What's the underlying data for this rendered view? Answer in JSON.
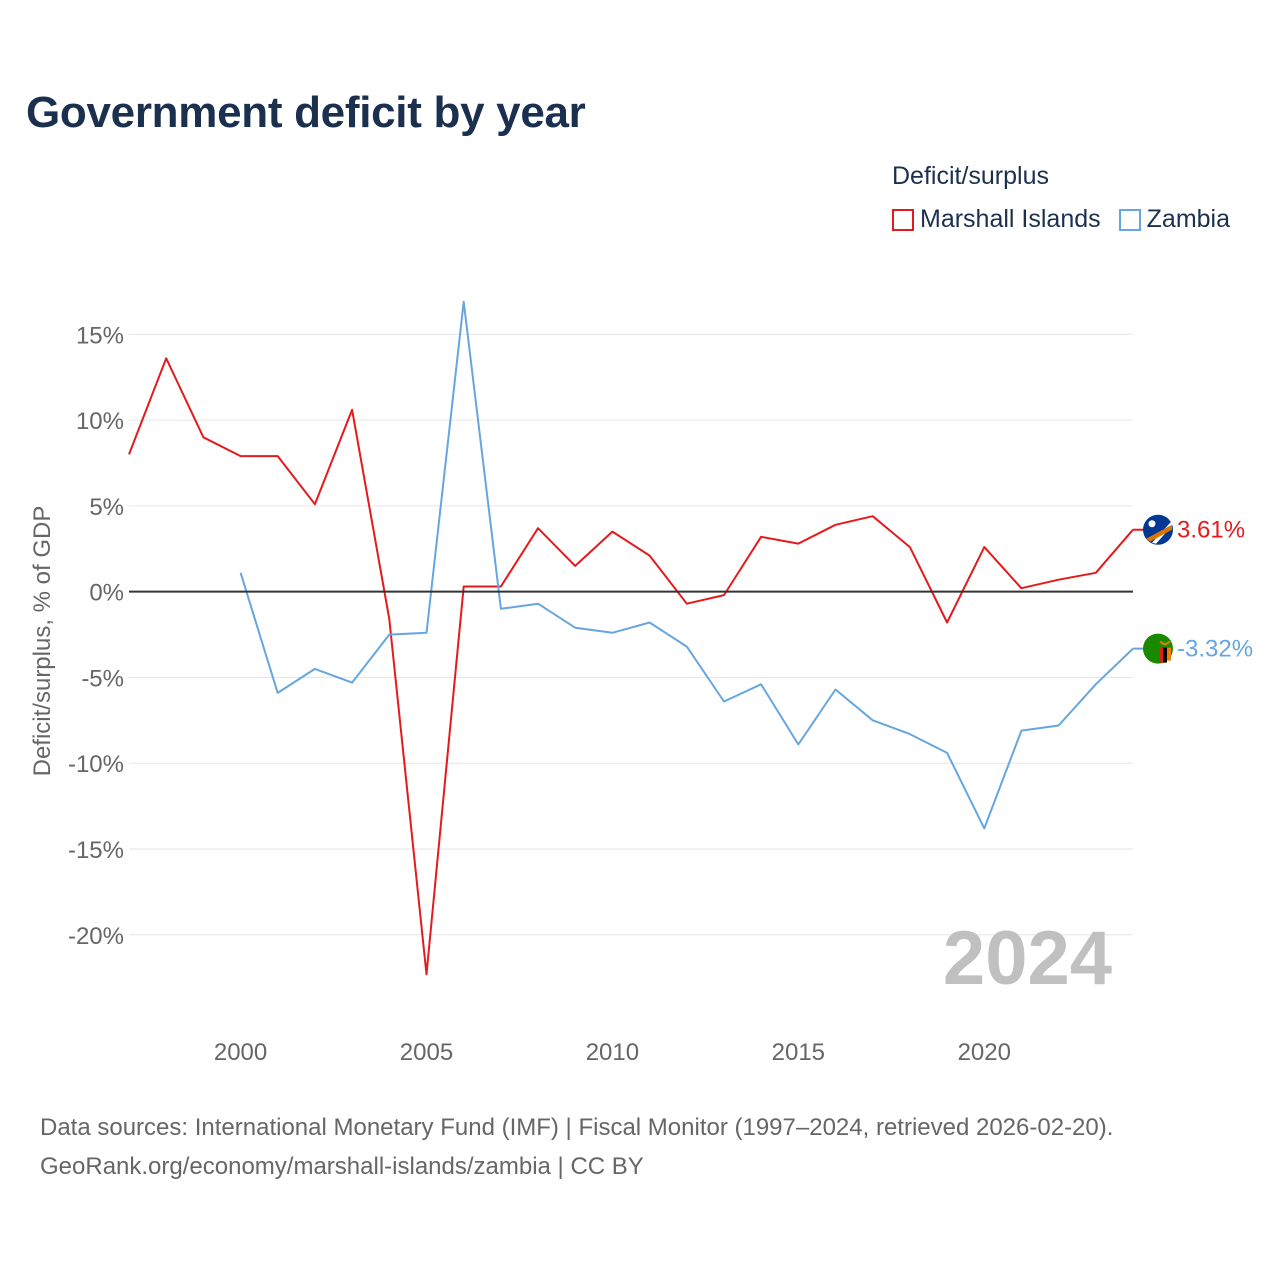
{
  "title": "Government deficit by year",
  "legend": {
    "title": "Deficit/surplus",
    "items": [
      {
        "label": "Marshall Islands",
        "color": "#e41a1c"
      },
      {
        "label": "Zambia",
        "color": "#66a6e0"
      }
    ]
  },
  "footer": {
    "line1": "Data sources: International Monetary Fund (IMF) | Fiscal Monitor (1997–2024, retrieved 2026-02-20).",
    "line2": "GeoRank.org/economy/marshall-islands/zambia | CC BY"
  },
  "chart_data": {
    "type": "line",
    "title": "Government deficit by year",
    "ylabel": "Deficit/surplus, % of GDP",
    "xlabel": "",
    "watermark": "2024",
    "xlim": [
      1997,
      2024
    ],
    "ylim": [
      -24.5,
      17
    ],
    "x_ticks": [
      2000,
      2005,
      2010,
      2015,
      2020
    ],
    "y_ticks": [
      15,
      10,
      5,
      0,
      -5,
      -10,
      -15,
      -20
    ],
    "y_tick_labels": [
      "15%",
      "10%",
      "5%",
      "0%",
      "-5%",
      "-10%",
      "-15%",
      "-20%"
    ],
    "series": [
      {
        "name": "Marshall Islands",
        "color": "#e41a1c",
        "end_label": "3.61%",
        "x": [
          1997,
          1998,
          1999,
          2000,
          2001,
          2002,
          2003,
          2004,
          2005,
          2006,
          2007,
          2008,
          2009,
          2010,
          2011,
          2012,
          2013,
          2014,
          2015,
          2016,
          2017,
          2018,
          2019,
          2020,
          2021,
          2022,
          2023,
          2024
        ],
        "values": [
          8.0,
          13.6,
          9.0,
          7.9,
          7.9,
          5.1,
          10.6,
          -1.6,
          -22.3,
          0.3,
          0.3,
          3.7,
          1.5,
          3.5,
          2.1,
          -0.7,
          -0.2,
          3.2,
          2.8,
          3.9,
          4.4,
          2.6,
          -1.8,
          2.6,
          0.2,
          0.7,
          1.1,
          3.61
        ]
      },
      {
        "name": "Zambia",
        "color": "#66a6e0",
        "end_label": "-3.32%",
        "x": [
          2000,
          2001,
          2002,
          2003,
          2004,
          2005,
          2006,
          2007,
          2008,
          2009,
          2010,
          2011,
          2012,
          2013,
          2014,
          2015,
          2016,
          2017,
          2018,
          2019,
          2020,
          2021,
          2022,
          2023,
          2024
        ],
        "values": [
          1.1,
          -5.9,
          -4.5,
          -5.3,
          -2.5,
          -2.4,
          16.9,
          -1.0,
          -0.7,
          -2.1,
          -2.4,
          -1.8,
          -3.2,
          -6.4,
          -5.4,
          -8.9,
          -5.7,
          -7.5,
          -8.3,
          -9.4,
          -13.8,
          -8.1,
          -7.8,
          -5.4,
          -3.32
        ]
      }
    ]
  }
}
